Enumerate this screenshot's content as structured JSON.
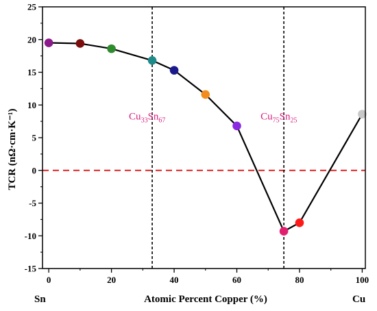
{
  "chart_data": {
    "type": "scatter",
    "x": [
      0,
      10,
      20,
      33,
      40,
      50,
      60,
      75,
      80,
      100
    ],
    "y": [
      19.5,
      19.4,
      18.6,
      16.8,
      15.3,
      11.6,
      6.8,
      -9.3,
      -8.0,
      8.6
    ],
    "point_colors": [
      "#8b1a8b",
      "#7a0e0e",
      "#2e8b2e",
      "#1f8a8a",
      "#1a1a8c",
      "#f28c1e",
      "#8a2be2",
      "#e0206e",
      "#ff1a1a",
      "#c8c8c8"
    ],
    "line_color": "#000000",
    "xlim": [
      -2,
      101
    ],
    "ylim": [
      -15,
      25
    ],
    "xticks": [
      0,
      20,
      40,
      60,
      80,
      100
    ],
    "yticks": [
      -15,
      -10,
      -5,
      0,
      5,
      10,
      15,
      20,
      25
    ],
    "xlabel": "Atomic Percent Copper (%)",
    "xlabel_left": "Sn",
    "xlabel_right": "Cu",
    "ylabel": "TCR (nΩ·cm·K⁻¹)",
    "zero_line": {
      "y": 0,
      "color": "#e02020",
      "style": "dashed"
    },
    "vertical_lines": [
      33,
      75
    ],
    "annotations": [
      {
        "x": 33,
        "base1": "Cu",
        "sub1": "33",
        "base2": "Sn",
        "sub2": "67"
      },
      {
        "x": 75,
        "base1": "Cu",
        "sub1": "75",
        "base2": "Sn",
        "sub2": "25"
      }
    ],
    "grid": false,
    "legend": "none"
  }
}
